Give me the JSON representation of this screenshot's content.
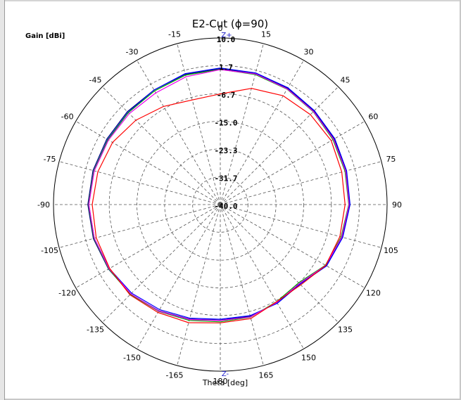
{
  "chart_data": {
    "type": "polar-line",
    "title": "E2-Cut (ϕ=90)",
    "rlabel": "Gain [dBi]",
    "xlabel": "Theta [deg]",
    "top_marker": "Z+",
    "bottom_marker": "Z-",
    "r_range": [
      -40.0,
      10.0
    ],
    "r_ticks": [
      "10.0",
      "1.7",
      "-6.7",
      "-15.0",
      "-23.3",
      "-31.7",
      "-40.0"
    ],
    "angle_ticks": [
      "0",
      "15",
      "30",
      "45",
      "60",
      "75",
      "90",
      "105",
      "120",
      "135",
      "150",
      "165",
      "180",
      "-165",
      "-150",
      "-135",
      "-120",
      "-105",
      "-90",
      "-75",
      "-60",
      "-45",
      "-30",
      "-15"
    ],
    "grid": true,
    "theta_deg": [
      -180,
      -165,
      -150,
      -135,
      -120,
      -105,
      -90,
      -75,
      -60,
      -45,
      -30,
      -15,
      0,
      15,
      30,
      45,
      60,
      75,
      90,
      105,
      120,
      135,
      150,
      165,
      180
    ],
    "series": [
      {
        "color": "#000080",
        "values": [
          -5.3,
          -4.4,
          -3.2,
          -2.0,
          -1.3,
          -0.6,
          -0.3,
          -0.5,
          -0.7,
          -0.6,
          -0.3,
          0.5,
          0.8,
          0.7,
          0.3,
          -0.3,
          -0.6,
          -0.9,
          -1.2,
          -2.2,
          -3.4,
          -6.4,
          -6.0,
          -5.3,
          -5.3
        ]
      },
      {
        "color": "#0000ff",
        "values": [
          -5.6,
          -4.7,
          -3.6,
          -2.4,
          -1.6,
          -0.9,
          -0.6,
          -0.8,
          -1.0,
          -0.9,
          -0.3,
          0.7,
          1.0,
          0.9,
          0.5,
          -0.1,
          -0.4,
          -0.8,
          -1.1,
          -2.0,
          -3.2,
          -6.2,
          -5.8,
          -5.5,
          -5.6
        ]
      },
      {
        "color": "#00aa00",
        "values": [
          -4.8,
          -4.0,
          -3.0,
          -1.9,
          -1.4,
          -0.8,
          -0.5,
          -0.8,
          -1.1,
          -1.0,
          -0.6,
          0.2,
          0.6,
          0.4,
          0.0,
          -0.6,
          -1.0,
          -1.3,
          -1.5,
          -2.5,
          -3.6,
          -6.8,
          -6.3,
          -5.0,
          -4.8
        ]
      },
      {
        "color": "#ee00ee",
        "values": [
          -5.2,
          -4.3,
          -3.1,
          -2.1,
          -1.5,
          -0.9,
          -0.6,
          -0.9,
          -1.3,
          -1.4,
          -1.3,
          -0.3,
          0.5,
          0.6,
          0.1,
          -0.5,
          -0.8,
          -1.1,
          -1.4,
          -2.3,
          -3.5,
          -6.5,
          -6.1,
          -5.1,
          -5.2
        ]
      },
      {
        "color": "#ff0000",
        "values": [
          -4.5,
          -3.3,
          -2.6,
          -1.7,
          -1.7,
          -1.5,
          -1.6,
          -2.0,
          -2.7,
          -4.2,
          -6.0,
          -7.5,
          -6.8,
          -3.9,
          -2.3,
          -1.8,
          -1.6,
          -2.3,
          -2.6,
          -2.9,
          -3.5,
          -5.9,
          -6.3,
          -4.6,
          -4.5
        ]
      }
    ]
  }
}
